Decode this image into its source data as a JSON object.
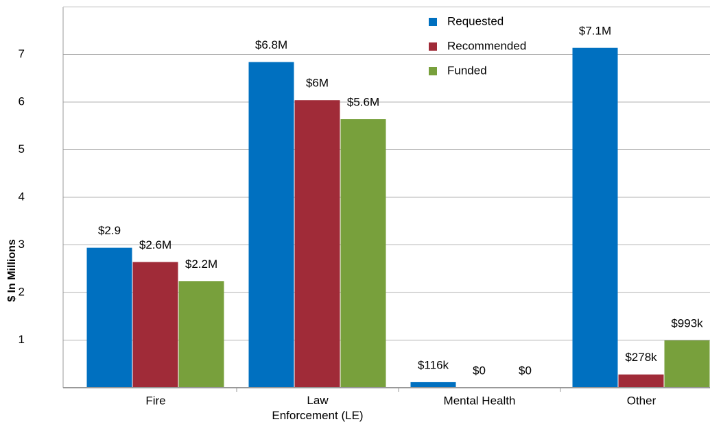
{
  "chart_data": {
    "type": "bar",
    "y_label": "$ In Millions",
    "categories": [
      "Fire",
      "Law\nEnforcement (LE)",
      "Mental Health",
      "Other"
    ],
    "series": [
      {
        "name": "Requested",
        "color": "#0070c0",
        "values": [
          2.94,
          6.84,
          0.116,
          7.14
        ],
        "value_labels": [
          "$2.9",
          "$6.8M",
          "$116k",
          "$7.1M"
        ]
      },
      {
        "name": "Recommended",
        "color": "#a02b38",
        "values": [
          2.64,
          6.04,
          0,
          0.278
        ],
        "value_labels": [
          "$2.6M",
          "$6M",
          "$0",
          "$278k"
        ]
      },
      {
        "name": "Funded",
        "color": "#78a03c",
        "values": [
          2.24,
          5.64,
          0,
          0.993
        ],
        "value_labels": [
          "$2.2M",
          "$5.6M",
          "$0",
          "$993k"
        ]
      }
    ],
    "ylim": [
      0,
      8
    ],
    "yticks": [
      1,
      2,
      3,
      4,
      5,
      6,
      7
    ],
    "grid": true,
    "legend": "top-right"
  }
}
